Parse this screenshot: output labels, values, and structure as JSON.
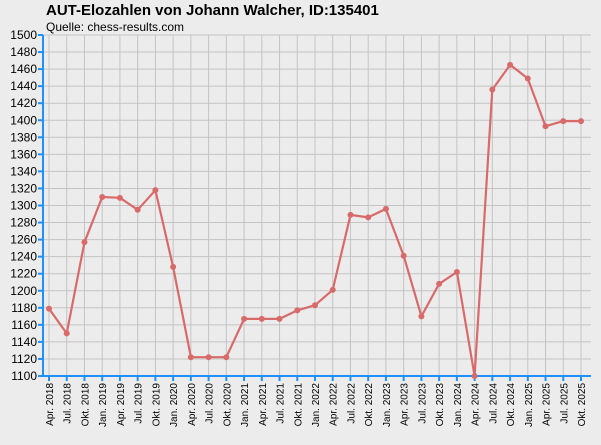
{
  "chart_data": {
    "type": "line",
    "title": "AUT-Elozahlen von Johann Walcher, ID:135401",
    "subtitle": "Quelle: chess-results.com",
    "xlabel": "",
    "ylabel": "",
    "ylim": [
      1100,
      1500
    ],
    "ytick_step": 20,
    "grid": true,
    "line_color": "#d96a6a",
    "axis_color": "#1e90ff",
    "categories": [
      "Apr. 2018",
      "Jul. 2018",
      "Okt. 2018",
      "Jan. 2019",
      "Apr. 2019",
      "Jul. 2019",
      "Okt. 2019",
      "Jan. 2020",
      "Apr. 2020",
      "Jul. 2020",
      "Okt. 2020",
      "Jan. 2021",
      "Apr. 2021",
      "Jul. 2021",
      "Okt. 2021",
      "Jan. 2022",
      "Apr. 2022",
      "Jul. 2022",
      "Okt. 2022",
      "Jan. 2023",
      "Apr. 2023",
      "Jul. 2023",
      "Okt. 2023",
      "Jan. 2024",
      "Apr. 2024",
      "Jul. 2024",
      "Okt. 2024",
      "Jan. 2025",
      "Apr. 2025",
      "Jul. 2025",
      "Okt. 2025"
    ],
    "series": [
      {
        "values": [
          1179,
          1150,
          1257,
          1310,
          1309,
          1295,
          1318,
          1228,
          1122,
          1122,
          1122,
          1167,
          1167,
          1167,
          1177,
          1183,
          1201,
          1289,
          1286,
          1296,
          1241,
          1170,
          1208,
          1222,
          1100,
          1436,
          1465,
          1449,
          1393,
          1399,
          1399
        ]
      }
    ]
  }
}
